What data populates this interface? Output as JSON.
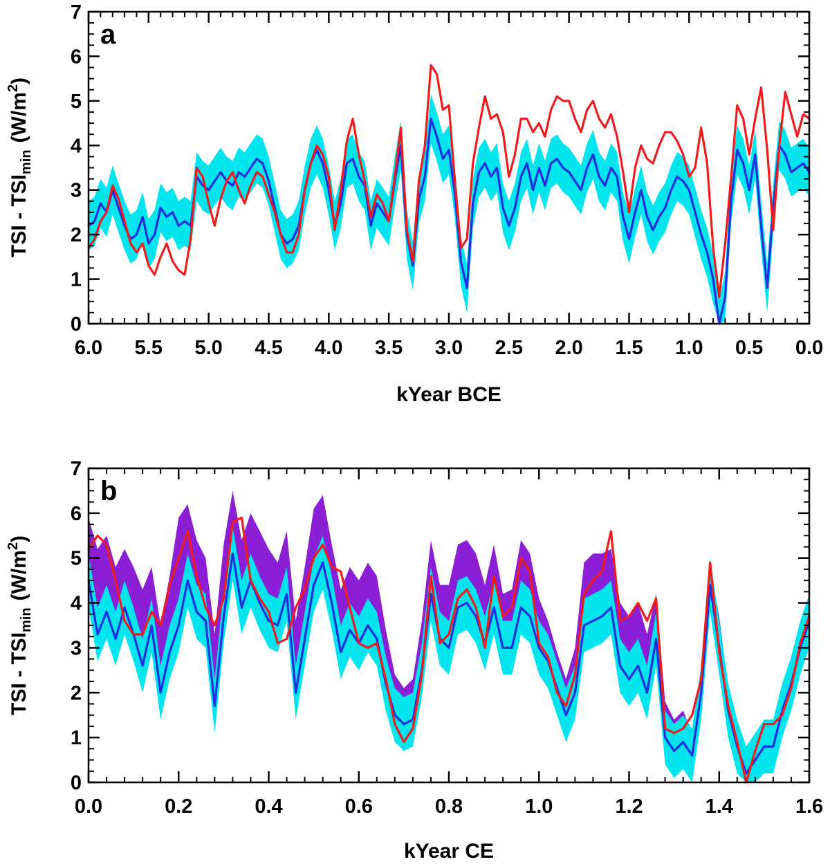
{
  "chart_data": [
    {
      "type": "line",
      "panel_label": "a",
      "ylabel": {
        "main": "TSI - TSI",
        "sub": "min",
        "unit_pre": "(W/m",
        "unit_sup": "2",
        "unit_post": ")"
      },
      "xlabel": "kYear BCE",
      "xlim": [
        6.0,
        0.0
      ],
      "ylim": [
        0,
        7
      ],
      "x_ticks": [
        "6.0",
        "5.5",
        "5.0",
        "4.5",
        "4.0",
        "3.5",
        "3.0",
        "2.5",
        "2.0",
        "1.5",
        "1.0",
        "0.5",
        "0.0"
      ],
      "y_ticks": [
        "0",
        "1",
        "2",
        "3",
        "4",
        "5",
        "6",
        "7"
      ],
      "colors": {
        "band_cyan": "#00e5ee",
        "blue": "#1f2fe0",
        "red": "#ee1c1c"
      },
      "x": [
        6.0,
        5.95,
        5.9,
        5.85,
        5.8,
        5.75,
        5.7,
        5.65,
        5.6,
        5.55,
        5.5,
        5.45,
        5.4,
        5.35,
        5.3,
        5.25,
        5.2,
        5.15,
        5.1,
        5.05,
        5.0,
        4.95,
        4.9,
        4.85,
        4.8,
        4.75,
        4.7,
        4.65,
        4.6,
        4.55,
        4.5,
        4.45,
        4.4,
        4.35,
        4.3,
        4.25,
        4.2,
        4.15,
        4.1,
        4.05,
        4.0,
        3.95,
        3.9,
        3.85,
        3.8,
        3.75,
        3.7,
        3.65,
        3.6,
        3.55,
        3.5,
        3.45,
        3.4,
        3.35,
        3.3,
        3.25,
        3.2,
        3.15,
        3.1,
        3.05,
        3.0,
        2.95,
        2.9,
        2.85,
        2.8,
        2.75,
        2.7,
        2.65,
        2.6,
        2.55,
        2.5,
        2.45,
        2.4,
        2.35,
        2.3,
        2.25,
        2.2,
        2.15,
        2.1,
        2.05,
        2.0,
        1.95,
        1.9,
        1.85,
        1.8,
        1.75,
        1.7,
        1.65,
        1.6,
        1.55,
        1.5,
        1.45,
        1.4,
        1.35,
        1.3,
        1.25,
        1.2,
        1.15,
        1.1,
        1.05,
        1.0,
        0.95,
        0.9,
        0.85,
        0.8,
        0.75,
        0.7,
        0.65,
        0.6,
        0.55,
        0.5,
        0.45,
        0.4,
        0.35,
        0.3,
        0.25,
        0.2,
        0.15,
        0.1,
        0.05,
        0.0
      ],
      "series": [
        {
          "name": "ensemble mean",
          "color_key": "blue",
          "values": [
            2.2,
            2.3,
            2.7,
            2.5,
            3.0,
            2.6,
            2.2,
            1.9,
            2.0,
            2.4,
            1.8,
            2.0,
            2.6,
            2.4,
            2.5,
            2.2,
            2.3,
            2.2,
            3.3,
            3.1,
            3.0,
            3.2,
            3.4,
            3.2,
            3.1,
            3.4,
            3.3,
            3.5,
            3.7,
            3.6,
            3.2,
            2.6,
            2.0,
            1.8,
            1.9,
            2.2,
            3.0,
            3.6,
            3.9,
            3.6,
            3.0,
            2.2,
            2.7,
            3.6,
            3.7,
            3.3,
            3.1,
            2.2,
            2.7,
            2.5,
            2.3,
            3.2,
            4.0,
            2.0,
            1.3,
            2.8,
            3.3,
            4.6,
            4.2,
            3.7,
            3.9,
            2.9,
            1.4,
            0.8,
            2.7,
            3.4,
            3.6,
            3.3,
            3.5,
            2.6,
            2.2,
            2.6,
            3.3,
            3.6,
            3.0,
            3.5,
            3.1,
            3.6,
            3.7,
            3.5,
            3.4,
            3.2,
            3.0,
            3.5,
            3.8,
            3.3,
            3.1,
            3.5,
            3.3,
            2.4,
            1.9,
            2.5,
            3.0,
            2.4,
            2.1,
            2.4,
            2.6,
            3.0,
            3.3,
            3.2,
            3.0,
            2.5,
            2.0,
            1.6,
            1.0,
            0.0,
            0.6,
            2.8,
            3.9,
            3.6,
            3.0,
            3.8,
            2.2,
            0.8,
            2.6,
            4.0,
            3.8,
            3.4,
            3.5,
            3.6,
            3.4
          ]
        },
        {
          "name": "red reconstruction",
          "color_key": "red",
          "values": [
            1.7,
            1.9,
            2.3,
            2.5,
            3.1,
            2.8,
            2.3,
            1.8,
            1.6,
            1.8,
            1.3,
            1.1,
            1.5,
            1.8,
            1.4,
            1.2,
            1.1,
            1.9,
            3.5,
            3.3,
            2.7,
            2.2,
            2.8,
            3.2,
            3.4,
            3.0,
            2.7,
            3.1,
            3.4,
            3.3,
            2.9,
            2.5,
            2.0,
            1.6,
            1.6,
            2.0,
            3.0,
            3.6,
            4.0,
            3.8,
            3.3,
            2.1,
            3.0,
            4.1,
            4.6,
            3.8,
            3.2,
            2.4,
            2.9,
            2.7,
            2.3,
            3.3,
            4.4,
            2.1,
            1.4,
            3.2,
            4.0,
            5.8,
            5.6,
            4.8,
            4.9,
            3.2,
            1.7,
            1.9,
            3.6,
            4.4,
            5.1,
            4.6,
            4.7,
            4.3,
            3.3,
            3.8,
            4.6,
            4.6,
            4.3,
            4.5,
            4.2,
            4.8,
            5.1,
            5.0,
            5.0,
            4.6,
            4.3,
            4.8,
            5.0,
            4.6,
            4.4,
            4.7,
            4.2,
            3.4,
            2.5,
            3.5,
            4.0,
            3.7,
            3.6,
            4.0,
            4.3,
            4.3,
            4.1,
            3.8,
            3.3,
            3.5,
            4.4,
            3.6,
            1.7,
            0.6,
            1.8,
            3.3,
            4.9,
            4.6,
            3.8,
            4.6,
            5.3,
            3.9,
            2.1,
            4.0,
            5.2,
            4.7,
            4.2,
            4.7,
            4.6
          ]
        }
      ],
      "band": {
        "name": "cyan uncertainty range",
        "color_key": "band_cyan",
        "half_width": 0.55
      }
    },
    {
      "type": "line",
      "panel_label": "b",
      "ylabel": {
        "main": "TSI - TSI",
        "sub": "min",
        "unit_pre": "(W/m",
        "unit_sup": "2",
        "unit_post": ")"
      },
      "xlabel": "kYear CE",
      "xlim": [
        0.0,
        1.6
      ],
      "ylim": [
        0,
        7
      ],
      "x_ticks": [
        "0.0",
        "0.2",
        "0.4",
        "0.6",
        "0.8",
        "1.0",
        "1.2",
        "1.4",
        "1.6"
      ],
      "y_ticks": [
        "0",
        "1",
        "2",
        "3",
        "4",
        "5",
        "6",
        "7"
      ],
      "colors": {
        "band_purple": "#8a1fd6",
        "band_cyan": "#00e5ee",
        "blue": "#1f2fe0",
        "red": "#ee1c1c"
      },
      "x": [
        0.0,
        0.02,
        0.04,
        0.06,
        0.08,
        0.1,
        0.12,
        0.14,
        0.16,
        0.18,
        0.2,
        0.22,
        0.24,
        0.26,
        0.28,
        0.3,
        0.32,
        0.34,
        0.36,
        0.38,
        0.4,
        0.42,
        0.44,
        0.46,
        0.48,
        0.5,
        0.52,
        0.54,
        0.56,
        0.58,
        0.6,
        0.62,
        0.64,
        0.66,
        0.68,
        0.7,
        0.72,
        0.74,
        0.76,
        0.78,
        0.8,
        0.82,
        0.84,
        0.86,
        0.88,
        0.9,
        0.92,
        0.94,
        0.96,
        0.98,
        1.0,
        1.02,
        1.04,
        1.06,
        1.08,
        1.1,
        1.12,
        1.14,
        1.16,
        1.18,
        1.2,
        1.22,
        1.24,
        1.26,
        1.28,
        1.3,
        1.32,
        1.34,
        1.36,
        1.38,
        1.4,
        1.42,
        1.44,
        1.46,
        1.48,
        1.5,
        1.52,
        1.54,
        1.56,
        1.58,
        1.6
      ],
      "series": [
        {
          "name": "ensemble mean",
          "color_key": "blue",
          "values": [
            4.5,
            3.3,
            3.8,
            3.2,
            3.9,
            3.3,
            2.6,
            3.5,
            2.0,
            2.9,
            3.5,
            4.5,
            3.8,
            3.6,
            1.7,
            3.7,
            5.1,
            3.9,
            4.5,
            4.0,
            3.6,
            3.5,
            4.2,
            2.0,
            3.2,
            4.4,
            4.9,
            4.0,
            2.9,
            3.4,
            3.1,
            3.5,
            3.2,
            2.2,
            1.5,
            1.3,
            1.4,
            2.5,
            4.2,
            3.2,
            3.0,
            3.9,
            4.0,
            3.7,
            3.1,
            3.9,
            3.0,
            3.0,
            3.9,
            3.7,
            3.0,
            2.7,
            2.1,
            1.5,
            2.0,
            3.5,
            3.6,
            3.7,
            3.9,
            2.6,
            2.3,
            2.6,
            2.0,
            3.2,
            1.0,
            0.7,
            0.9,
            0.6,
            2.0,
            4.4,
            3.0,
            1.6,
            0.8,
            0.2,
            0.5,
            0.8,
            0.8,
            1.6,
            2.2,
            3.0,
            3.6
          ]
        },
        {
          "name": "red reconstruction",
          "color_key": "red",
          "values": [
            5.2,
            5.5,
            5.3,
            4.5,
            3.6,
            3.3,
            3.3,
            3.8,
            3.5,
            4.4,
            5.0,
            5.6,
            4.6,
            3.9,
            3.5,
            4.1,
            5.8,
            5.9,
            4.5,
            4.1,
            3.8,
            3.1,
            3.2,
            3.9,
            4.3,
            5.0,
            5.3,
            4.8,
            4.7,
            3.9,
            3.1,
            3.0,
            3.1,
            2.3,
            1.3,
            0.9,
            1.2,
            2.4,
            4.6,
            3.1,
            3.3,
            4.1,
            4.3,
            3.9,
            3.0,
            4.6,
            3.7,
            3.9,
            5.0,
            4.7,
            3.1,
            2.8,
            2.0,
            1.7,
            2.4,
            4.2,
            4.5,
            4.7,
            5.6,
            3.6,
            3.7,
            4.0,
            3.6,
            4.1,
            1.2,
            1.1,
            1.2,
            1.5,
            2.3,
            4.9,
            2.9,
            1.7,
            0.9,
            0.0,
            0.7,
            1.3,
            1.3,
            1.5,
            2.1,
            3.1,
            3.7
          ]
        }
      ],
      "bands": [
        {
          "name": "purple uncertainty range",
          "color_key": "band_purple",
          "lower": [
            4.3,
            3.8,
            4.2,
            3.6,
            4.3,
            3.7,
            3.0,
            3.8,
            2.3,
            3.2,
            3.9,
            4.9,
            4.2,
            4.0,
            2.0,
            4.1,
            5.5,
            4.2,
            4.9,
            4.4,
            4.0,
            3.8,
            4.6,
            2.3,
            3.5,
            4.8,
            5.3,
            4.3,
            3.2,
            3.7,
            3.4,
            3.8,
            3.5,
            2.5,
            1.7,
            1.5,
            1.6,
            2.8,
            4.6,
            3.5,
            3.4,
            4.3,
            4.4,
            4.1,
            3.4,
            4.3,
            3.3,
            3.3,
            4.3,
            4.1,
            3.3,
            3.0,
            2.3,
            1.7,
            2.2,
            3.9,
            4.1,
            4.2,
            4.2,
            2.9,
            2.6,
            2.9,
            2.2,
            3.5,
            1.1,
            0.7,
            0.8,
            0.3,
            1.7,
            4.1,
            2.7,
            1.2,
            0.4,
            0.0,
            0.1,
            0.3,
            0.3,
            1.2,
            2.0,
            2.8,
            3.4
          ],
          "upper": [
            5.9,
            5.2,
            5.5,
            4.8,
            5.2,
            4.8,
            4.3,
            4.8,
            3.5,
            4.6,
            5.9,
            6.2,
            5.4,
            5.0,
            3.3,
            5.3,
            6.5,
            5.4,
            6.0,
            5.6,
            5.2,
            4.9,
            5.6,
            3.6,
            4.8,
            6.1,
            6.4,
            5.3,
            4.3,
            4.8,
            4.5,
            4.9,
            4.6,
            3.4,
            2.4,
            2.1,
            2.3,
            3.6,
            5.4,
            4.4,
            4.4,
            5.3,
            5.4,
            5.1,
            4.4,
            5.3,
            4.2,
            4.3,
            5.4,
            5.1,
            4.1,
            3.6,
            2.9,
            2.3,
            3.0,
            4.9,
            5.1,
            5.1,
            5.2,
            4.0,
            3.7,
            4.0,
            3.3,
            4.2,
            1.8,
            1.4,
            1.6,
            1.1,
            2.4,
            4.8,
            3.7,
            2.1,
            1.2,
            0.6,
            1.0,
            1.3,
            1.4,
            1.8,
            2.4,
            3.2,
            3.9
          ]
        },
        {
          "name": "cyan uncertainty range",
          "color_key": "band_cyan",
          "half_width": 0.6
        }
      ]
    }
  ]
}
